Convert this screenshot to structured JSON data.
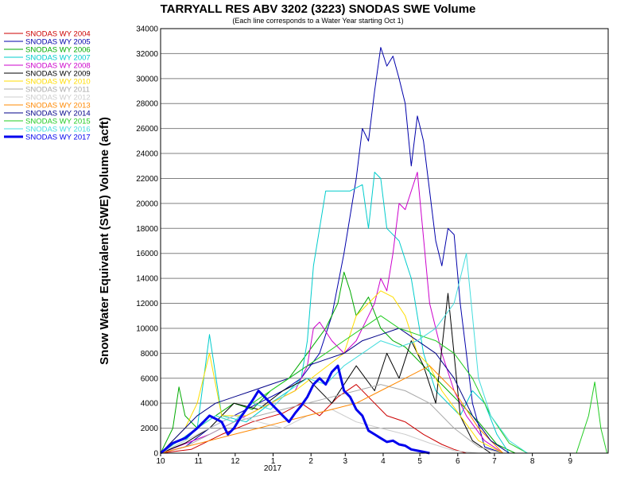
{
  "chart_data": {
    "type": "line",
    "title": "TARRYALL RES ABV 3202 (3223) SNODAS SWE Volume",
    "subtitle": "(Each line corresponds to a Water Year starting Oct 1)",
    "ylabel": "Snow Water Equivalent (SWE) Volume (acft)",
    "xlabel": "",
    "year_label": "2017",
    "ylim": [
      0,
      34000
    ],
    "y_ticks": [
      "0",
      "2000",
      "4000",
      "6000",
      "8000",
      "10000",
      "12000",
      "14000",
      "16000",
      "18000",
      "20000",
      "22000",
      "24000",
      "26000",
      "28000",
      "30000",
      "32000",
      "34000"
    ],
    "x_ticks": [
      "10",
      "11",
      "12",
      "1",
      "2",
      "3",
      "4",
      "5",
      "6",
      "7",
      "8",
      "9"
    ],
    "grid": true,
    "legend_position": "left",
    "series": [
      {
        "name": "SNODAS WY 2004",
        "color": "#cc0000",
        "width": 1,
        "x": [
          0,
          25,
          50,
          75,
          100,
          115,
          130,
          145,
          160,
          175,
          185,
          200,
          215,
          230,
          240,
          250,
          265,
          275
        ],
        "y": [
          0,
          300,
          1500,
          2500,
          3200,
          4000,
          3000,
          4500,
          5500,
          4000,
          3000,
          2500,
          1500,
          700,
          300,
          0,
          0,
          0
        ]
      },
      {
        "name": "SNODAS WY 2005",
        "color": "#0000aa",
        "width": 1,
        "x": [
          0,
          20,
          40,
          60,
          80,
          100,
          115,
          130,
          140,
          150,
          160,
          165,
          170,
          175,
          180,
          185,
          190,
          195,
          200,
          205,
          210,
          215,
          220,
          225,
          230,
          235,
          240,
          245,
          255,
          265,
          280
        ],
        "y": [
          0,
          500,
          2000,
          3000,
          4000,
          5000,
          6000,
          8000,
          11000,
          16000,
          22000,
          26000,
          25000,
          29000,
          32500,
          31000,
          31800,
          30000,
          28000,
          23000,
          27000,
          25000,
          21000,
          17000,
          15000,
          18000,
          17500,
          12000,
          4000,
          500,
          0
        ]
      },
      {
        "name": "SNODAS WY 2006",
        "color": "#00aa00",
        "width": 1,
        "x": [
          0,
          10,
          15,
          20,
          30,
          45,
          60,
          75,
          90,
          105,
          120,
          135,
          145,
          150,
          155,
          160,
          170,
          180,
          190,
          200,
          215,
          230,
          245,
          260,
          275,
          290
        ],
        "y": [
          0,
          2000,
          5300,
          3000,
          2000,
          3000,
          4000,
          3500,
          5000,
          6000,
          8000,
          10000,
          12000,
          14500,
          13000,
          11000,
          12500,
          10000,
          9000,
          8500,
          7000,
          5500,
          4000,
          2500,
          700,
          0
        ]
      },
      {
        "name": "SNODAS WY 2007",
        "color": "#00cccc",
        "width": 1,
        "x": [
          0,
          20,
          30,
          40,
          50,
          70,
          90,
          105,
          115,
          120,
          125,
          135,
          145,
          155,
          165,
          170,
          175,
          180,
          185,
          195,
          205,
          215,
          225,
          235,
          245,
          255,
          265,
          275,
          285
        ],
        "y": [
          0,
          1000,
          2000,
          9500,
          3000,
          2500,
          4000,
          5000,
          6000,
          9000,
          15000,
          21000,
          21000,
          21000,
          21500,
          18000,
          22500,
          22000,
          18000,
          17000,
          14000,
          8000,
          5000,
          4000,
          3000,
          5000,
          4000,
          1500,
          0
        ]
      },
      {
        "name": "SNODAS WY 2008",
        "color": "#cc00cc",
        "width": 1,
        "x": [
          0,
          40,
          60,
          80,
          100,
          110,
          120,
          125,
          130,
          140,
          150,
          160,
          170,
          175,
          180,
          185,
          190,
          195,
          200,
          210,
          220,
          230,
          240,
          250,
          265,
          280
        ],
        "y": [
          0,
          1500,
          2500,
          3500,
          4500,
          5000,
          7000,
          10000,
          10500,
          9000,
          8000,
          9000,
          11000,
          12000,
          14000,
          13000,
          16000,
          20000,
          19500,
          22500,
          12000,
          8000,
          5000,
          3000,
          1000,
          0
        ]
      },
      {
        "name": "SNODAS WY 2009",
        "color": "#000000",
        "width": 1,
        "x": [
          0,
          20,
          40,
          60,
          80,
          100,
          120,
          140,
          160,
          175,
          185,
          195,
          205,
          215,
          225,
          235,
          245,
          255,
          270
        ],
        "y": [
          0,
          800,
          2000,
          4000,
          3500,
          5000,
          6000,
          4000,
          7000,
          5000,
          8000,
          6000,
          9000,
          7000,
          4000,
          12800,
          3000,
          1000,
          0
        ]
      },
      {
        "name": "SNODAS WY 2010",
        "color": "#ffdd00",
        "width": 1,
        "x": [
          0,
          20,
          30,
          40,
          50,
          70,
          90,
          110,
          130,
          150,
          160,
          170,
          180,
          190,
          200,
          210,
          220,
          230,
          245,
          260,
          280
        ],
        "y": [
          0,
          2000,
          4000,
          8000,
          3000,
          3000,
          4000,
          5000,
          6500,
          8000,
          11000,
          12000,
          13000,
          12500,
          11000,
          8000,
          7000,
          5000,
          3000,
          1000,
          0
        ]
      },
      {
        "name": "SNODAS WY 2011",
        "color": "#aaaaaa",
        "width": 1,
        "x": [
          0,
          20,
          40,
          60,
          80,
          100,
          120,
          140,
          160,
          180,
          200,
          220,
          240,
          260,
          280
        ],
        "y": [
          0,
          500,
          1500,
          2500,
          3000,
          3500,
          4000,
          4500,
          5000,
          5500,
          5000,
          4000,
          2000,
          500,
          0
        ]
      },
      {
        "name": "SNODAS WY 2012",
        "color": "#cccccc",
        "width": 1,
        "x": [
          0,
          20,
          40,
          60,
          80,
          100,
          120,
          140,
          160,
          180,
          200,
          220,
          240,
          260
        ],
        "y": [
          0,
          1000,
          2000,
          3000,
          2500,
          2000,
          3000,
          3500,
          2500,
          2000,
          1500,
          800,
          200,
          0
        ]
      },
      {
        "name": "SNODAS WY 2013",
        "color": "#ff8800",
        "width": 1,
        "x": [
          0,
          20,
          40,
          60,
          80,
          100,
          120,
          140,
          160,
          180,
          200,
          220,
          240,
          260,
          280
        ],
        "y": [
          0,
          500,
          1000,
          1500,
          2000,
          2500,
          3000,
          3500,
          4000,
          5000,
          6000,
          7000,
          5000,
          2000,
          0
        ]
      },
      {
        "name": "SNODAS WY 2014",
        "color": "#000088",
        "width": 1,
        "x": [
          0,
          15,
          30,
          45,
          60,
          75,
          90,
          105,
          120,
          135,
          150,
          165,
          180,
          195,
          210,
          225,
          240,
          255,
          270,
          285
        ],
        "y": [
          0,
          1500,
          3000,
          4000,
          4500,
          5000,
          5500,
          6000,
          7000,
          7500,
          8000,
          9000,
          9500,
          10000,
          9000,
          8000,
          6000,
          3000,
          1000,
          0
        ]
      },
      {
        "name": "SNODAS WY 2015",
        "color": "#22cc22",
        "width": 1,
        "x": [
          0,
          15,
          30,
          45,
          60,
          75,
          90,
          105,
          120,
          135,
          150,
          165,
          180,
          195,
          210,
          225,
          240,
          255,
          270,
          285,
          300,
          340,
          350,
          355,
          360,
          365
        ],
        "y": [
          0,
          1000,
          2000,
          3000,
          2500,
          4000,
          5000,
          6000,
          7000,
          8000,
          9000,
          10000,
          11000,
          10000,
          9500,
          9000,
          8000,
          6000,
          3000,
          800,
          0,
          0,
          3000,
          5700,
          2000,
          0
        ]
      },
      {
        "name": "SNODAS WY 2016",
        "color": "#44dddd",
        "width": 1,
        "x": [
          0,
          15,
          30,
          45,
          60,
          75,
          90,
          105,
          120,
          135,
          150,
          165,
          180,
          195,
          210,
          225,
          240,
          250,
          255,
          260,
          270,
          285,
          300
        ],
        "y": [
          0,
          1000,
          2000,
          3000,
          2500,
          4000,
          3500,
          5000,
          6000,
          5500,
          7000,
          8000,
          9000,
          8500,
          9000,
          10000,
          12000,
          16000,
          11000,
          6000,
          3000,
          1000,
          0
        ]
      },
      {
        "name": "SNODAS WY 2017",
        "color": "#0000ee",
        "width": 3,
        "x": [
          0,
          10,
          20,
          30,
          40,
          50,
          55,
          60,
          65,
          70,
          75,
          80,
          85,
          90,
          95,
          100,
          105,
          110,
          115,
          120,
          125,
          130,
          135,
          140,
          145,
          150,
          155,
          160,
          165,
          170,
          175,
          180,
          185,
          190,
          195,
          200,
          205,
          210,
          215,
          220
        ],
        "y": [
          0,
          800,
          1200,
          2000,
          3000,
          2500,
          1500,
          2000,
          2800,
          3500,
          4200,
          5000,
          4500,
          4000,
          3500,
          3000,
          2500,
          3200,
          3800,
          4500,
          5500,
          6000,
          5500,
          6500,
          7000,
          5000,
          4500,
          3500,
          3000,
          1800,
          1500,
          1200,
          900,
          1000,
          700,
          600,
          300,
          200,
          100,
          0
        ]
      }
    ]
  }
}
